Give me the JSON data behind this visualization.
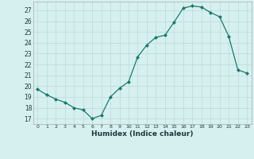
{
  "x": [
    0,
    1,
    2,
    3,
    4,
    5,
    6,
    7,
    8,
    9,
    10,
    11,
    12,
    13,
    14,
    15,
    16,
    17,
    18,
    19,
    20,
    21,
    22,
    23
  ],
  "y": [
    19.7,
    19.2,
    18.8,
    18.5,
    18.0,
    17.8,
    17.0,
    17.3,
    19.0,
    19.8,
    20.4,
    22.7,
    23.8,
    24.5,
    24.7,
    25.9,
    27.2,
    27.4,
    27.3,
    26.8,
    26.4,
    24.6,
    21.5,
    21.2
  ],
  "line_color": "#1a7a6a",
  "marker": "D",
  "marker_size": 2.0,
  "bg_color": "#d6f0f0",
  "grid_color": "#c0dcdc",
  "xlabel": "Humidex (Indice chaleur)",
  "ylabel_ticks": [
    17,
    18,
    19,
    20,
    21,
    22,
    23,
    24,
    25,
    26,
    27
  ],
  "ylim": [
    16.5,
    27.8
  ],
  "xlim": [
    -0.5,
    23.5
  ]
}
